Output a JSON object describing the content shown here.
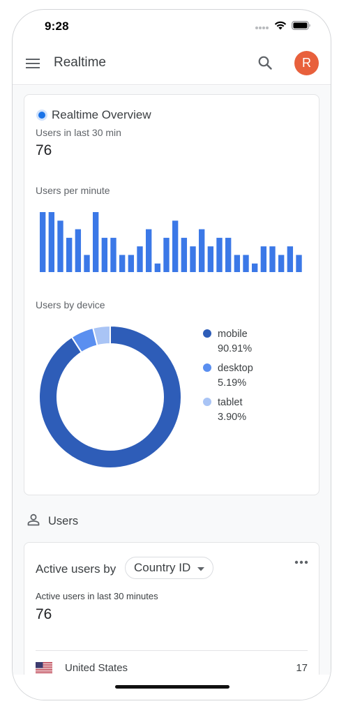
{
  "status_bar": {
    "time": "9:28"
  },
  "app_bar": {
    "title": "Realtime",
    "avatar_letter": "R",
    "avatar_color": "#e8603c"
  },
  "realtime_card": {
    "title": "Realtime Overview",
    "users_label": "Users in last 30 min",
    "users_value": "76",
    "per_minute_label": "Users per minute",
    "device_label": "Users by device"
  },
  "chart_data": [
    {
      "type": "bar",
      "title": "Users per minute",
      "values": [
        7,
        7,
        6,
        4,
        5,
        2,
        7,
        4,
        4,
        2,
        2,
        3,
        5,
        1,
        4,
        6,
        4,
        3,
        5,
        3,
        4,
        4,
        2,
        2,
        1,
        3,
        3,
        2,
        3,
        2
      ],
      "ylim": [
        0,
        7
      ],
      "color": "#3b78e7"
    },
    {
      "type": "pie",
      "title": "Users by device",
      "slices": [
        {
          "label": "mobile",
          "value": 90.91,
          "display": "90.91%",
          "color": "#2e5db8"
        },
        {
          "label": "desktop",
          "value": 5.19,
          "display": "5.19%",
          "color": "#5a8ff0"
        },
        {
          "label": "tablet",
          "value": 3.9,
          "display": "3.90%",
          "color": "#a9c4f5"
        }
      ],
      "legend_position": "right"
    }
  ],
  "users_section": {
    "title": "Users"
  },
  "active_users_card": {
    "title": "Active users by",
    "dimension": "Country ID",
    "subtitle": "Active users in last 30 minutes",
    "value": "76",
    "rows": [
      {
        "country": "United States",
        "count": "17",
        "flag": "us-flag-icon"
      }
    ]
  }
}
